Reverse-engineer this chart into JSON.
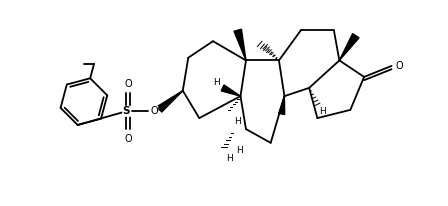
{
  "bg_color": "#ffffff",
  "line_color": "#000000",
  "bond_lw": 1.3,
  "bold_lw": 3.5,
  "figsize": [
    4.48,
    2.06
  ],
  "dpi": 100,
  "font_size": 6.5,
  "xlim": [
    -0.5,
    14.5
  ],
  "ylim": [
    -0.3,
    7.2
  ]
}
